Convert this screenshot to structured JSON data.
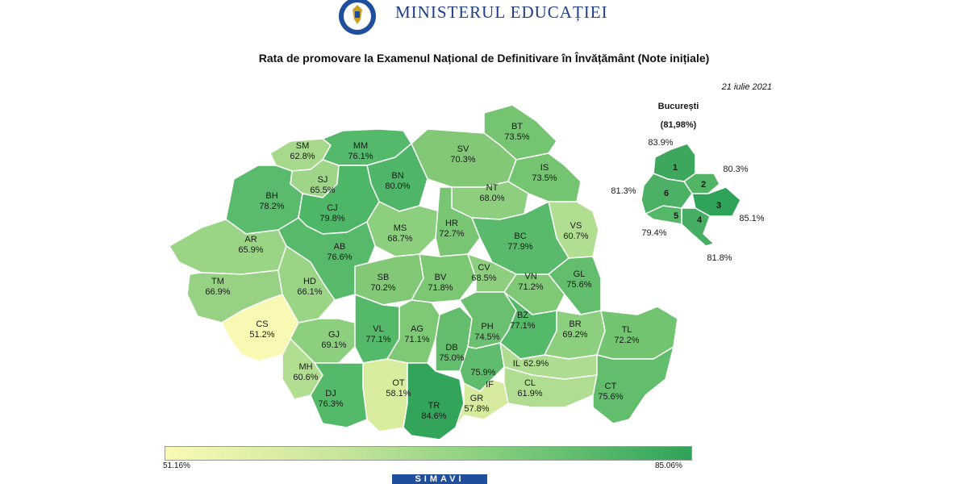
{
  "header": {
    "ministry_name": "MINISTERUL EDUCAȚIEI",
    "crest_icon": "romanian-government-crest-icon"
  },
  "title": "Rata de promovare la Examenul Național de Definitivare în Învățământ (Note inițiale)",
  "date": "21 iulie 2021",
  "colors": {
    "scale_low": "#fafab4",
    "scale_mid": "#a6d98a",
    "scale_high": "#2fa35a",
    "border": "#ffffff"
  },
  "counties": [
    {
      "code": "SM",
      "value": "62.8%"
    },
    {
      "code": "MM",
      "value": "76.1%"
    },
    {
      "code": "SJ",
      "value": "65.5%"
    },
    {
      "code": "BN",
      "value": "80.0%"
    },
    {
      "code": "BH",
      "value": "78.2%"
    },
    {
      "code": "CJ",
      "value": "79.8%"
    },
    {
      "code": "SV",
      "value": "70.3%"
    },
    {
      "code": "BT",
      "value": "73.5%"
    },
    {
      "code": "IS",
      "value": "73.5%"
    },
    {
      "code": "NT",
      "value": "68.0%"
    },
    {
      "code": "AR",
      "value": "65.9%"
    },
    {
      "code": "AB",
      "value": "76.6%"
    },
    {
      "code": "MS",
      "value": "68.7%"
    },
    {
      "code": "HR",
      "value": "72.7%"
    },
    {
      "code": "BC",
      "value": "77.9%"
    },
    {
      "code": "VS",
      "value": "60.7%"
    },
    {
      "code": "TM",
      "value": "66.9%"
    },
    {
      "code": "HD",
      "value": "66.1%"
    },
    {
      "code": "SB",
      "value": "70.2%"
    },
    {
      "code": "BV",
      "value": "71.8%"
    },
    {
      "code": "CV",
      "value": "68.5%"
    },
    {
      "code": "VN",
      "value": "71.2%"
    },
    {
      "code": "GL",
      "value": "75.6%"
    },
    {
      "code": "CS",
      "value": "51.2%"
    },
    {
      "code": "GJ",
      "value": "69.1%"
    },
    {
      "code": "VL",
      "value": "77.1%"
    },
    {
      "code": "AG",
      "value": "71.1%"
    },
    {
      "code": "DB",
      "value": "75.0%"
    },
    {
      "code": "PH",
      "value": "74.5%"
    },
    {
      "code": "BZ",
      "value": "77.1%"
    },
    {
      "code": "BR",
      "value": "69.2%"
    },
    {
      "code": "TL",
      "value": "72.2%"
    },
    {
      "code": "MH",
      "value": "60.6%"
    },
    {
      "code": "IL",
      "value": "62.9%"
    },
    {
      "code": "IF",
      "value": "75.9%"
    },
    {
      "code": "DJ",
      "value": "76.3%"
    },
    {
      "code": "OT",
      "value": "58.1%"
    },
    {
      "code": "TR",
      "value": "84.6%"
    },
    {
      "code": "GR",
      "value": "57.8%"
    },
    {
      "code": "CL",
      "value": "61.9%"
    },
    {
      "code": "CT",
      "value": "75.6%"
    }
  ],
  "bucharest": {
    "title": "București",
    "overall": "(81,98%)",
    "sectors": [
      {
        "num": "1",
        "value": "83.9%"
      },
      {
        "num": "2",
        "value": "80.3%"
      },
      {
        "num": "3",
        "value": "85.1%"
      },
      {
        "num": "4",
        "value": "81.8%"
      },
      {
        "num": "5",
        "value": "79.4%"
      },
      {
        "num": "6",
        "value": "81.3%"
      }
    ]
  },
  "legend": {
    "min": "51.16%",
    "max": "85.06%"
  },
  "footer_logo": "SIMAVI"
}
